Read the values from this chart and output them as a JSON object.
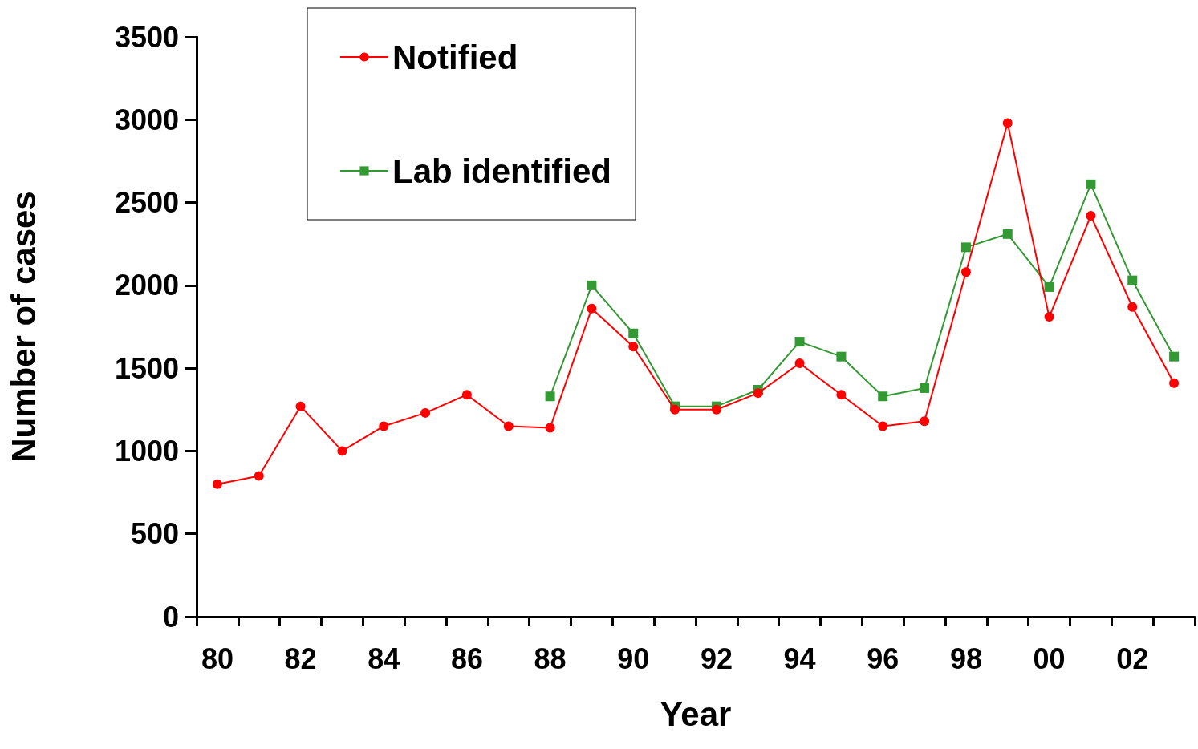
{
  "chart_data": {
    "type": "line",
    "xlabel": "Year",
    "ylabel": "Number of cases",
    "categories": [
      "80",
      null,
      "82",
      null,
      "84",
      null,
      "86",
      null,
      "88",
      null,
      "90",
      null,
      "92",
      null,
      "94",
      null,
      "96",
      null,
      "98",
      null,
      "00",
      null,
      "02",
      null
    ],
    "series": [
      {
        "name": "Notified",
        "color": "#ff0000",
        "marker": "circle",
        "values": [
          800,
          850,
          1270,
          1000,
          1150,
          1230,
          1340,
          1150,
          1140,
          1860,
          1630,
          1250,
          1250,
          1350,
          1530,
          1340,
          1150,
          1180,
          2080,
          2980,
          1810,
          2420,
          1870,
          1410
        ]
      },
      {
        "name": "Lab identified",
        "color": "#339933",
        "marker": "square",
        "values": [
          null,
          null,
          null,
          null,
          null,
          null,
          null,
          null,
          1330,
          2000,
          1710,
          1270,
          1270,
          1370,
          1660,
          1570,
          1330,
          1380,
          2230,
          2310,
          1990,
          2610,
          2030,
          1570
        ]
      }
    ],
    "ylim": [
      0,
      3500
    ],
    "yticks": [
      0,
      500,
      1000,
      1500,
      2000,
      2500,
      3000,
      3500
    ],
    "grid": false,
    "legend": "top left",
    "line_style": "solid"
  }
}
